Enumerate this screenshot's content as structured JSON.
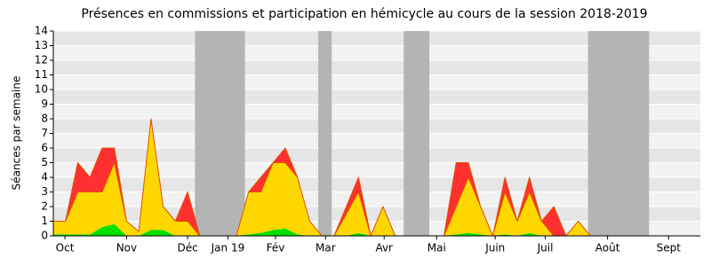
{
  "chart_data": {
    "type": "stacked_area",
    "title": "Présences en commissions et participation en hémicycle au cours de la session 2018-2019",
    "y_label": "Séances par semaine",
    "x": [
      0,
      1,
      2,
      3,
      4,
      5,
      6,
      7,
      8,
      9,
      10,
      11,
      12,
      13,
      14,
      15,
      16,
      17,
      18,
      19,
      20,
      21,
      22,
      23,
      24,
      25,
      26,
      27,
      28,
      29,
      30,
      31,
      32,
      33,
      34,
      35,
      36,
      37,
      38,
      39,
      40,
      41,
      42,
      43,
      44,
      45,
      46,
      47,
      48,
      49,
      50,
      51,
      52,
      53
    ],
    "series": [
      {
        "color": "#00e000",
        "values": [
          0.1,
          0.1,
          0.1,
          0.1,
          0.6,
          0.8,
          0,
          0,
          0.4,
          0.4,
          0,
          0,
          0,
          0,
          0,
          0,
          0.1,
          0.2,
          0.4,
          0.5,
          0.1,
          0,
          0,
          0,
          0,
          0.2,
          0,
          0,
          0,
          0,
          0,
          0,
          0,
          0.1,
          0.2,
          0.1,
          0,
          0.1,
          0,
          0.2,
          0,
          0,
          0,
          0,
          0,
          0,
          0,
          0,
          0,
          0,
          0,
          0,
          0,
          0
        ]
      },
      {
        "color": "#ffd700",
        "values": [
          0.9,
          0.9,
          2.9,
          2.9,
          2.4,
          4.2,
          1,
          0.3,
          7.6,
          1.6,
          1,
          1,
          0,
          0,
          0,
          0,
          2.9,
          2.8,
          4.6,
          4.5,
          3.9,
          1,
          0,
          0,
          1.5,
          2.8,
          0,
          2,
          0,
          0,
          0,
          0,
          0,
          1.9,
          3.8,
          1.9,
          0,
          2.9,
          1,
          2.8,
          1,
          0,
          0,
          1,
          0,
          0,
          0,
          0,
          0,
          0,
          0,
          0,
          0,
          0
        ]
      },
      {
        "color": "#ff3030",
        "values": [
          0,
          0,
          2,
          1,
          3,
          1,
          0,
          0,
          0,
          0,
          0,
          2,
          0,
          0,
          0,
          0,
          0,
          1,
          0,
          1,
          0,
          0,
          0,
          0,
          0.5,
          1,
          0,
          0,
          0,
          0,
          0,
          0,
          0,
          3,
          1,
          0,
          0,
          1,
          0,
          1,
          0,
          2,
          0,
          0,
          0,
          0,
          0,
          0,
          0,
          0,
          0,
          0,
          0,
          0
        ]
      }
    ],
    "xlim": [
      0,
      53
    ],
    "xticks": [
      {
        "value": 0.95,
        "label": "Oct"
      },
      {
        "value": 6.0,
        "label": "Nov"
      },
      {
        "value": 11.0,
        "label": "Déc"
      },
      {
        "value": 14.3,
        "label": "Jan 19"
      },
      {
        "value": 18.2,
        "label": "Fév"
      },
      {
        "value": 22.3,
        "label": "Mar"
      },
      {
        "value": 27.1,
        "label": "Avr"
      },
      {
        "value": 31.4,
        "label": "Mai"
      },
      {
        "value": 36.2,
        "label": "Juin"
      },
      {
        "value": 40.3,
        "label": "Juil"
      },
      {
        "value": 45.4,
        "label": "Août"
      },
      {
        "value": 50.4,
        "label": "Sept"
      }
    ],
    "ylim": [
      0,
      14
    ],
    "yticks": [
      0,
      1,
      2,
      3,
      4,
      5,
      6,
      7,
      8,
      9,
      10,
      11,
      12,
      13,
      14
    ],
    "grid": true,
    "shaded_ranges": [
      [
        11.6,
        15.7
      ],
      [
        21.7,
        22.8
      ],
      [
        28.7,
        30.8
      ],
      [
        43.8,
        48.8
      ]
    ],
    "shade_color": "#b4b4b4"
  }
}
